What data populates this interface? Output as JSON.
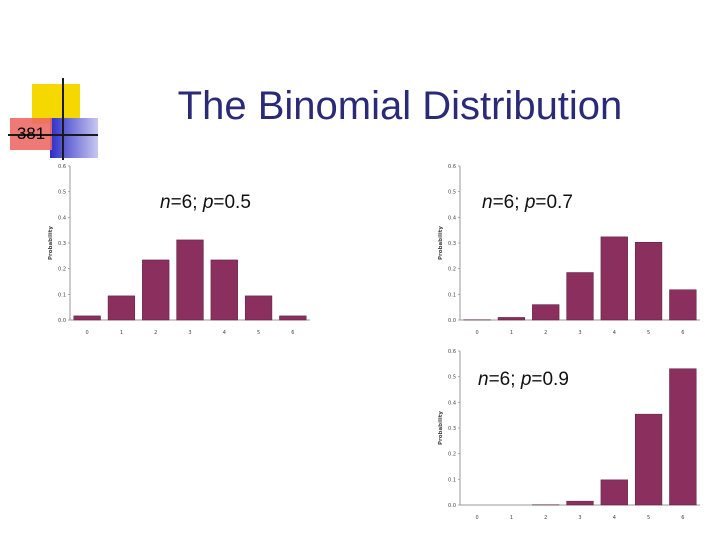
{
  "slide": {
    "number": "381",
    "title": "The Binomial Distribution"
  },
  "colors": {
    "bar": "#8B2F5E",
    "title": "#2A2A78",
    "deco_yellow": "#F5D800",
    "deco_red": "#E8403A",
    "deco_blue": "#2D2DC8"
  },
  "chart_data": [
    {
      "type": "bar",
      "title_parts": [
        {
          "text": "n",
          "italic": true
        },
        {
          "text": "=6; ",
          "italic": false
        },
        {
          "text": "p",
          "italic": true
        },
        {
          "text": "=0.5",
          "italic": false
        }
      ],
      "categories": [
        "0",
        "1",
        "2",
        "3",
        "4",
        "5",
        "6"
      ],
      "values": [
        0.016,
        0.094,
        0.234,
        0.312,
        0.234,
        0.094,
        0.016
      ],
      "ylabel": "Probability",
      "ylim": [
        0,
        0.6
      ],
      "yticks": [
        "0.0",
        "0.1",
        "0.2",
        "0.3",
        "0.4",
        "0.5",
        "0.6"
      ],
      "grid": false
    },
    {
      "type": "bar",
      "title_parts": [
        {
          "text": "n",
          "italic": true
        },
        {
          "text": "=6; ",
          "italic": false
        },
        {
          "text": "p",
          "italic": true
        },
        {
          "text": "=0.7",
          "italic": false
        }
      ],
      "categories": [
        "0",
        "1",
        "2",
        "3",
        "4",
        "5",
        "6"
      ],
      "values": [
        0.001,
        0.01,
        0.06,
        0.185,
        0.324,
        0.303,
        0.118
      ],
      "ylabel": "Probability",
      "ylim": [
        0,
        0.6
      ],
      "yticks": [
        "0.0",
        "0.1",
        "0.2",
        "0.3",
        "0.4",
        "0.5",
        "0.6"
      ],
      "grid": false
    },
    {
      "type": "bar",
      "title_parts": [
        {
          "text": "n",
          "italic": true
        },
        {
          "text": "=6; ",
          "italic": false
        },
        {
          "text": "p",
          "italic": true
        },
        {
          "text": "=0.9",
          "italic": false
        }
      ],
      "categories": [
        "0",
        "1",
        "2",
        "3",
        "4",
        "5",
        "6"
      ],
      "values": [
        0.0,
        0.0,
        0.001,
        0.015,
        0.098,
        0.354,
        0.531
      ],
      "ylabel": "Probability",
      "ylim": [
        0,
        0.6
      ],
      "yticks": [
        "0.0",
        "0.1",
        "0.2",
        "0.3",
        "0.4",
        "0.5",
        "0.6"
      ],
      "grid": false
    }
  ]
}
